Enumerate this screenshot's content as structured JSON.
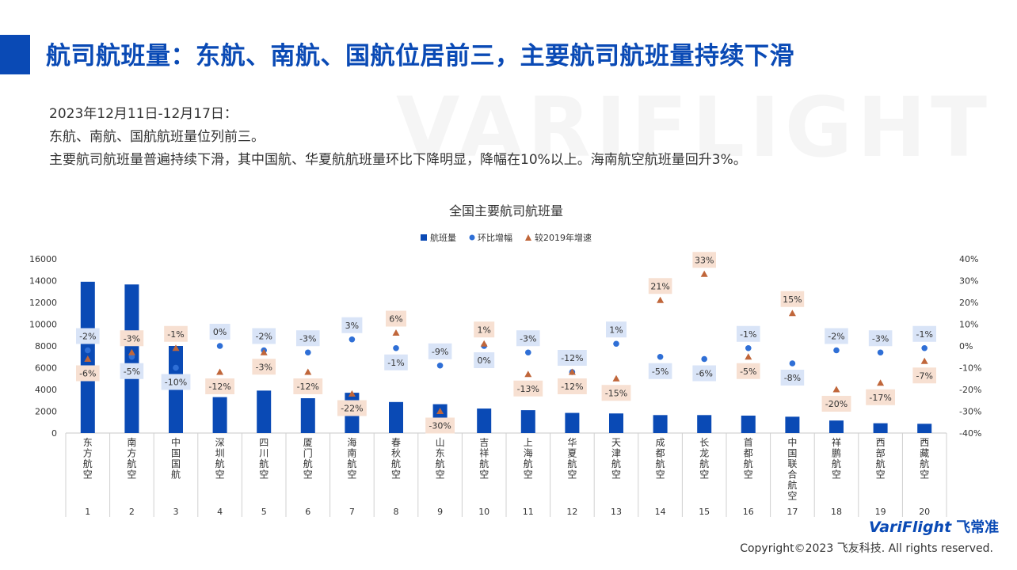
{
  "header": {
    "title": "航司航班量：东航、南航、国航位居前三，主要航司航班量持续下滑"
  },
  "watermark": "VARIFLIGHT",
  "summary": {
    "line1": "2023年12月11日-12月17日：",
    "line2": "东航、南航、国航航班量位列前三。",
    "line3": "主要航司航班量普遍持续下滑，其中国航、华夏航航班量环比下降明显，降幅在10%以上。海南航空航班量回升3%。"
  },
  "brand": {
    "logo_text": "VariFlight",
    "logo_cn": "飞常准",
    "copyright": "Copyright©2023 飞友科技. All rights reserved."
  },
  "colors": {
    "accent": "#0a4ab5",
    "bar": "#0a4ab5",
    "dot": "#2f6fd6",
    "triangle": "#c0663a",
    "wow_label_bg": "#d9e4f7",
    "vs2019_label_bg": "#f7e0d2"
  },
  "chart_data": {
    "type": "bar",
    "title": "全国主要航司航班量",
    "legend": [
      "航班量",
      "环比增幅",
      "较2019年增速"
    ],
    "legend_position": "top",
    "categories": [
      "东方航空",
      "南方航空",
      "中国国航",
      "深圳航空",
      "四川航空",
      "厦门航空",
      "海南航空",
      "春秋航空",
      "山东航空",
      "吉祥航空",
      "上海航空",
      "华夏航空",
      "天津航空",
      "成都航空",
      "长龙航空",
      "首都航空",
      "中国联合航空",
      "祥鹏航空",
      "西部航空",
      "西藏航空"
    ],
    "ranks": [
      "1",
      "2",
      "3",
      "4",
      "5",
      "6",
      "7",
      "8",
      "9",
      "10",
      "11",
      "12",
      "13",
      "14",
      "15",
      "16",
      "17",
      "18",
      "19",
      "20"
    ],
    "y_left_ticks": [
      "0",
      "2000",
      "4000",
      "6000",
      "8000",
      "10000",
      "12000",
      "14000",
      "16000"
    ],
    "y_right_ticks": [
      "-40%",
      "-30%",
      "-20%",
      "-10%",
      "0%",
      "10%",
      "20%",
      "30%",
      "40%"
    ],
    "ylim_left": [
      0,
      16000
    ],
    "ylim_right": [
      -40,
      40
    ],
    "series": [
      {
        "name": "航班量",
        "type": "bar",
        "axis": "left",
        "values": [
          13900,
          13650,
          8000,
          3300,
          3900,
          3200,
          3700,
          2850,
          2650,
          2250,
          2100,
          1850,
          1800,
          1650,
          1650,
          1600,
          1500,
          1150,
          900,
          850
        ]
      },
      {
        "name": "环比增幅",
        "type": "scatter",
        "axis": "right",
        "values": [
          -2,
          -5,
          -10,
          0,
          -2,
          -3,
          3,
          -1,
          -9,
          0,
          -3,
          -12,
          1,
          -5,
          -6,
          -1,
          -8,
          -2,
          -3,
          -1
        ],
        "labels": [
          "-2%",
          "-5%",
          "-10%",
          "0%",
          "-2%",
          "-3%",
          "3%",
          "-1%",
          "-9%",
          "0%",
          "-3%",
          "-12%",
          "1%",
          "-5%",
          "-6%",
          "-1%",
          "-8%",
          "-2%",
          "-3%",
          "-1%"
        ]
      },
      {
        "name": "较2019年增速",
        "type": "scatter",
        "axis": "right",
        "values": [
          -6,
          -3,
          -1,
          -12,
          -3,
          -12,
          -22,
          6,
          -30,
          1,
          -13,
          -12,
          -15,
          21,
          33,
          -5,
          15,
          -20,
          -17,
          -7
        ],
        "labels": [
          "-6%",
          "-3%",
          "-1%",
          "-12%",
          "-3%",
          "-12%",
          "-22%",
          "6%",
          "-30%",
          "1%",
          "-13%",
          "-12%",
          "-15%",
          "21%",
          "33%",
          "-5%",
          "15%",
          "-20%",
          "-17%",
          "-7%"
        ]
      }
    ]
  }
}
